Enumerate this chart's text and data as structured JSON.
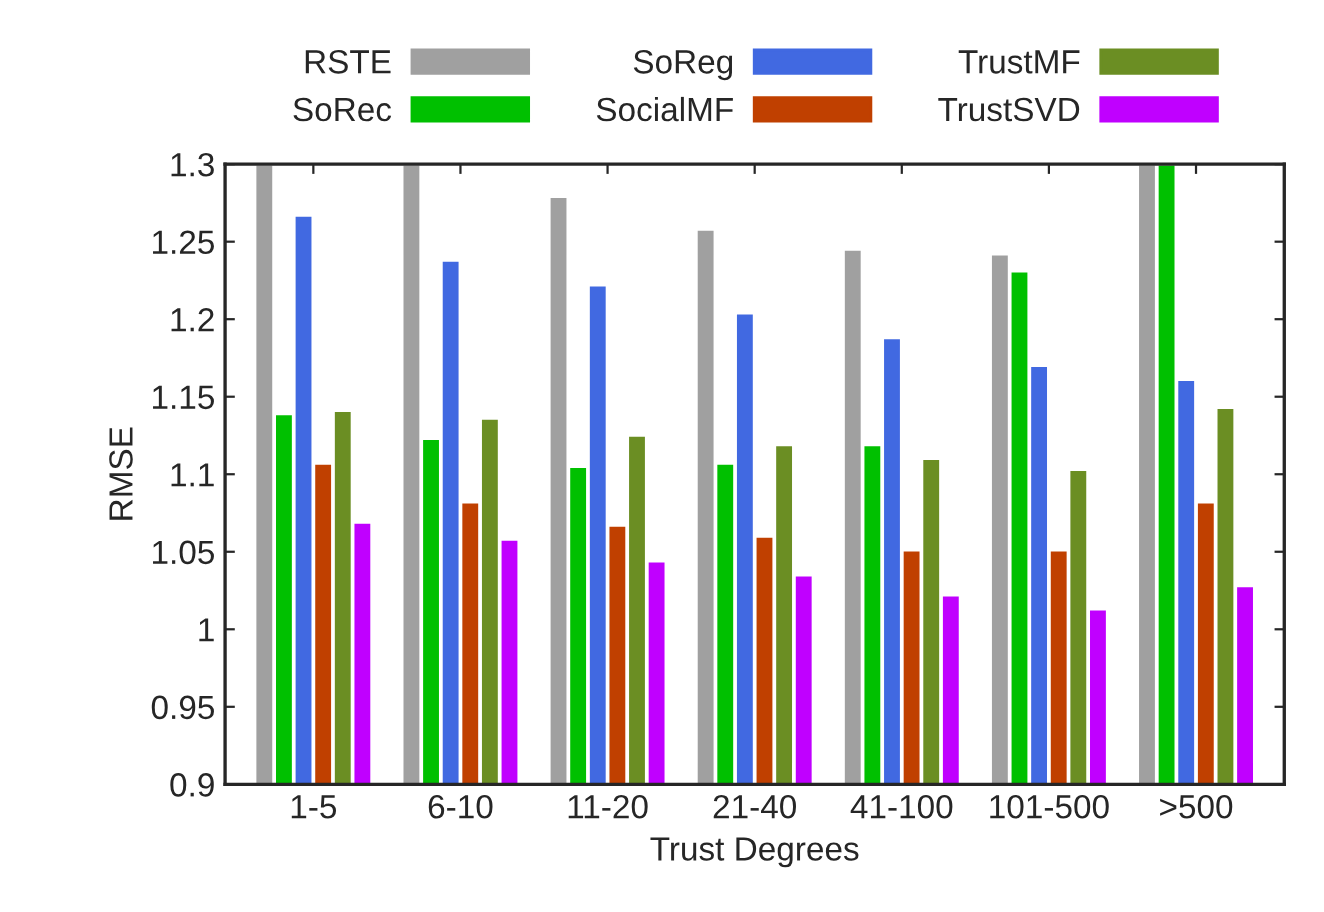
{
  "chart_data": {
    "type": "bar",
    "xlabel": "Trust Degrees",
    "ylabel": "RMSE",
    "categories": [
      "1-5",
      "6-10",
      "11-20",
      "21-40",
      "41-100",
      "101-500",
      ">500"
    ],
    "series": [
      {
        "name": "RSTE",
        "color": "#a0a0a0",
        "values": [
          1.3,
          1.3,
          1.279,
          1.258,
          1.245,
          1.242,
          1.3
        ]
      },
      {
        "name": "SoRec",
        "color": "#00c000",
        "values": [
          1.139,
          1.123,
          1.105,
          1.107,
          1.119,
          1.231,
          1.3
        ]
      },
      {
        "name": "SoReg",
        "color": "#4169e1",
        "values": [
          1.267,
          1.238,
          1.222,
          1.204,
          1.188,
          1.17,
          1.161
        ]
      },
      {
        "name": "SocialMF",
        "color": "#c04000",
        "values": [
          1.107,
          1.082,
          1.067,
          1.06,
          1.051,
          1.051,
          1.082
        ]
      },
      {
        "name": "TrustMF",
        "color": "#6b8e23",
        "values": [
          1.141,
          1.136,
          1.125,
          1.119,
          1.11,
          1.103,
          1.143
        ]
      },
      {
        "name": "TrustSVD",
        "color": "#c000ff",
        "values": [
          1.069,
          1.058,
          1.044,
          1.035,
          1.022,
          1.013,
          1.028
        ]
      }
    ],
    "ylim": [
      0.9,
      1.3
    ],
    "yticks": [
      0.9,
      0.95,
      1,
      1.05,
      1.1,
      1.15,
      1.2,
      1.25,
      1.3
    ],
    "legend": "top",
    "grid": false
  }
}
